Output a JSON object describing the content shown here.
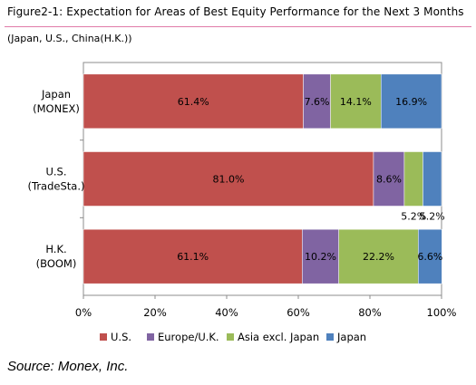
{
  "figure": {
    "title": "Figure2-1: Expectation for Areas of Best Equity Performance for the Next 3 Months",
    "subtitle": "(Japan, U.S., China(H.K.))",
    "source": "Source: Monex, Inc."
  },
  "chart_data": {
    "type": "bar",
    "orientation": "horizontal",
    "stacked": true,
    "percent_stacked": true,
    "categories": [
      [
        "Japan",
        "(MONEX)"
      ],
      [
        "U.S.",
        "(TradeSta.)"
      ],
      [
        "H.K.",
        "(BOOM)"
      ]
    ],
    "series": [
      {
        "name": "U.S.",
        "color": "#c0504d",
        "values": [
          61.4,
          81.0,
          61.1
        ],
        "labels": [
          "61.4%",
          "81.0%",
          "61.1%"
        ]
      },
      {
        "name": "Europe/U.K.",
        "color": "#8064a2",
        "values": [
          7.6,
          8.6,
          10.2
        ],
        "labels": [
          "7.6%",
          "8.6%",
          "10.2%"
        ]
      },
      {
        "name": "Asia excl. Japan",
        "color": "#9bbb59",
        "values": [
          14.1,
          5.2,
          22.2
        ],
        "labels": [
          "14.1%",
          "5.2%",
          "22.2%"
        ]
      },
      {
        "name": "Japan",
        "color": "#4f81bd",
        "values": [
          16.9,
          5.2,
          6.6
        ],
        "labels": [
          "16.9%",
          "5.2%",
          "6.6%"
        ]
      }
    ],
    "xlim": [
      0,
      100
    ],
    "x_ticks": [
      "0%",
      "20%",
      "40%",
      "60%",
      "80%",
      "100%"
    ],
    "grid": false,
    "legend": "bottom"
  }
}
